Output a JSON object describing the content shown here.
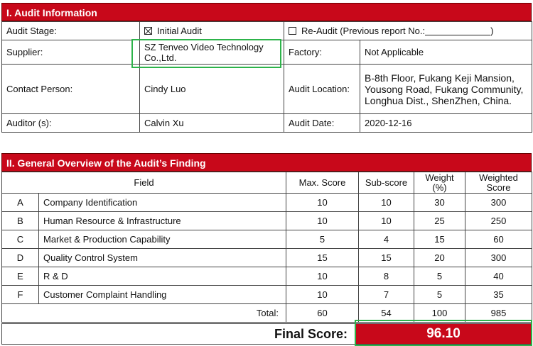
{
  "audit_info": {
    "heading": "I. Audit Information",
    "stage_label": "Audit Stage:",
    "initial_audit_label": "Initial Audit",
    "initial_audit_checked": true,
    "re_audit_label": "Re-Audit (Previous report No.:",
    "re_audit_close": ")",
    "re_audit_checked": false,
    "supplier_label": "Supplier:",
    "supplier_value": "SZ Tenveo Video Technology Co.,Ltd.",
    "factory_label": "Factory:",
    "factory_value": "Not Applicable",
    "contact_label": "Contact Person:",
    "contact_value": "Cindy Luo",
    "location_label": "Audit Location:",
    "location_value": "B-8th Floor, Fukang Keji Mansion, Yousong Road, Fukang Community, Longhua Dist., ShenZhen, China.",
    "auditor_label": "Auditor (s):",
    "auditor_value": "Calvin Xu",
    "date_label": "Audit Date:",
    "date_value": "2020-12-16"
  },
  "overview": {
    "heading": "II. General Overview of the Audit’s Finding",
    "col_field": "Field",
    "col_max": "Max. Score",
    "col_sub": "Sub-score",
    "col_weight": "Weight (%)",
    "col_weighted": "Weighted Score",
    "rows": [
      {
        "code": "A",
        "field": "Company Identification",
        "max": "10",
        "sub": "10",
        "weight": "30",
        "weighted": "300"
      },
      {
        "code": "B",
        "field": "Human Resource & Infrastructure",
        "max": "10",
        "sub": "10",
        "weight": "25",
        "weighted": "250"
      },
      {
        "code": "C",
        "field": "Market & Production Capability",
        "max": "5",
        "sub": "4",
        "weight": "15",
        "weighted": "60"
      },
      {
        "code": "D",
        "field": "Quality Control System",
        "max": "15",
        "sub": "15",
        "weight": "20",
        "weighted": "300"
      },
      {
        "code": "E",
        "field": "R & D",
        "max": "10",
        "sub": "8",
        "weight": "5",
        "weighted": "40"
      },
      {
        "code": "F",
        "field": "Customer Complaint Handling",
        "max": "10",
        "sub": "7",
        "weight": "5",
        "weighted": "35"
      }
    ],
    "total_label": "Total:",
    "total_max": "60",
    "total_sub": "54",
    "total_weight": "100",
    "total_weighted": "985",
    "final_label": "Final Score:",
    "final_value": "96.10"
  }
}
